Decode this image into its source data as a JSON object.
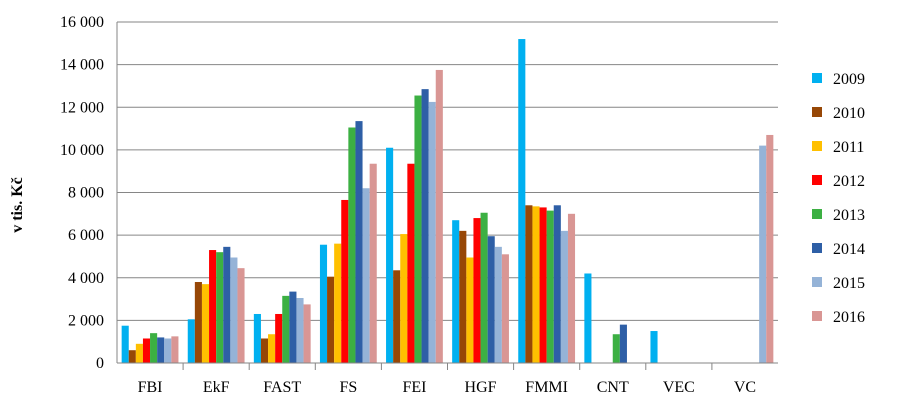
{
  "chart_data": {
    "type": "bar",
    "title": "",
    "xlabel": "",
    "ylabel": "v tis. Kč",
    "ylim": [
      0,
      16000
    ],
    "yticks": [
      0,
      2000,
      4000,
      6000,
      8000,
      10000,
      12000,
      14000,
      16000
    ],
    "ytick_labels": [
      "0",
      "2 000",
      "4 000",
      "6 000",
      "8 000",
      "10 000",
      "12 000",
      "14 000",
      "16 000"
    ],
    "grid": true,
    "legend_position": "right",
    "categories": [
      "FBI",
      "EkF",
      "FAST",
      "FS",
      "FEI",
      "HGF",
      "FMMI",
      "CNT",
      "VEC",
      "VC"
    ],
    "series": [
      {
        "name": "2009",
        "color": "#00b0f0",
        "values": [
          1750,
          2050,
          2300,
          5550,
          10100,
          6700,
          15200,
          4200,
          1500,
          0
        ]
      },
      {
        "name": "2010",
        "color": "#974706",
        "values": [
          600,
          3800,
          1150,
          4050,
          4350,
          6200,
          7400,
          0,
          0,
          0
        ]
      },
      {
        "name": "2011",
        "color": "#ffc000",
        "values": [
          900,
          3700,
          1350,
          5600,
          6050,
          4950,
          7350,
          0,
          0,
          0
        ]
      },
      {
        "name": "2012",
        "color": "#ff0000",
        "values": [
          1150,
          5300,
          2300,
          7650,
          9350,
          6800,
          7300,
          0,
          0,
          0
        ]
      },
      {
        "name": "2013",
        "color": "#3cb043",
        "values": [
          1400,
          5200,
          3150,
          11050,
          12550,
          7050,
          7150,
          1350,
          0,
          0
        ]
      },
      {
        "name": "2014",
        "color": "#2e5fa6",
        "values": [
          1200,
          5450,
          3350,
          11350,
          12850,
          5950,
          7400,
          1800,
          0,
          0
        ]
      },
      {
        "name": "2015",
        "color": "#95b3d7",
        "values": [
          1150,
          4950,
          3050,
          8200,
          12250,
          5450,
          6200,
          0,
          0,
          10200
        ]
      },
      {
        "name": "2016",
        "color": "#d99694",
        "values": [
          1250,
          4450,
          2750,
          9350,
          13750,
          5100,
          7000,
          0,
          0,
          10700
        ]
      }
    ]
  }
}
